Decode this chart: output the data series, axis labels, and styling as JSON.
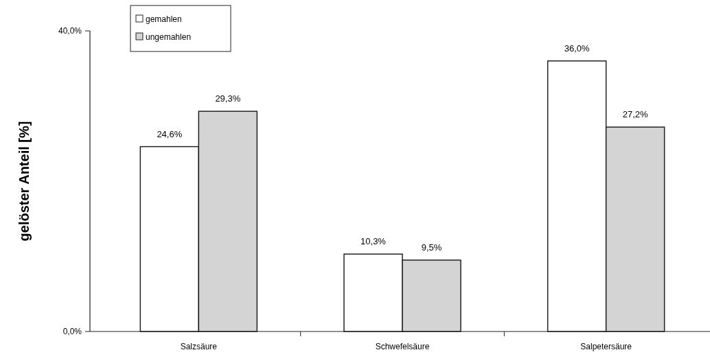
{
  "chart_data": {
    "type": "bar",
    "ylabel": "gelöster Anteil [%]",
    "categories": [
      "Salzsäure",
      "Schwefelsäure",
      "Salpetersäure"
    ],
    "series": [
      {
        "name": "gemahlen",
        "color": "#ffffff",
        "values": [
          24.6,
          10.3,
          36.0
        ],
        "value_labels": [
          "24,6%",
          "10,3%",
          "36,0%"
        ]
      },
      {
        "name": "ungemahlen",
        "color": "#d4d4d4",
        "values": [
          29.3,
          9.5,
          27.2
        ],
        "value_labels": [
          "29,3%",
          "9,5%",
          "27,2%"
        ]
      }
    ],
    "ylim": [
      0,
      40
    ],
    "yticks": [
      {
        "value": 0,
        "label": "0,0%"
      },
      {
        "value": 40,
        "label": "40,0%"
      }
    ],
    "grid": false,
    "legend": "top left"
  }
}
